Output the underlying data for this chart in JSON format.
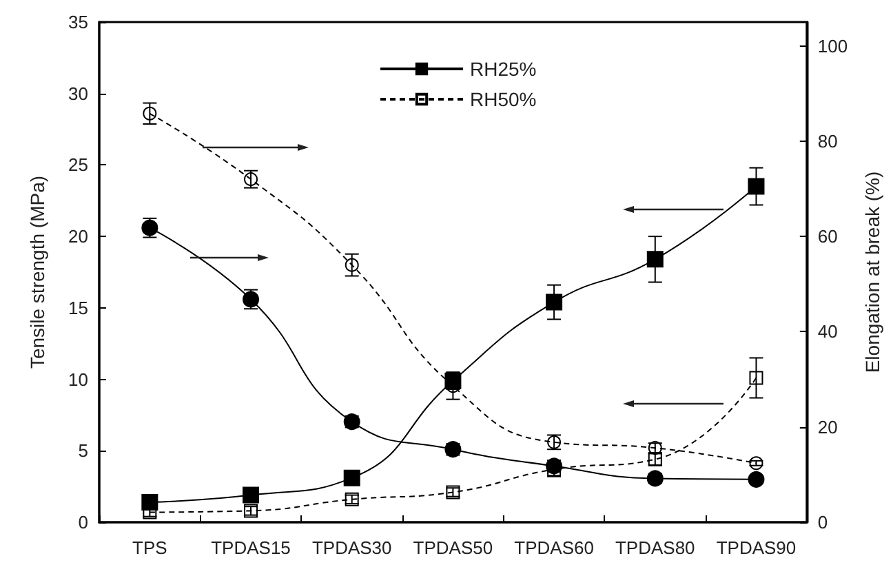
{
  "chart_data": {
    "type": "line",
    "categories": [
      "TPS",
      "TPDAS15",
      "TPDAS30",
      "TPDAS50",
      "TPDAS60",
      "TPDAS80",
      "TPDAS90"
    ],
    "ylabel": "Tensile strength (MPa)",
    "y2label": "Elongation at break (%)",
    "ylim": [
      0,
      35
    ],
    "yticks": [
      0,
      5,
      10,
      15,
      20,
      25,
      30,
      35
    ],
    "y2lim": [
      0,
      105
    ],
    "y2ticks": [
      0,
      20,
      40,
      60,
      80,
      100
    ],
    "grid": false,
    "legend": "top",
    "series": [
      {
        "name": "RH25%",
        "color": "#000000",
        "marker": "square",
        "line_style": "solid",
        "values": [
          1.4,
          1.9,
          3.1,
          9.9,
          15.4,
          18.4,
          23.5
        ],
        "errors": [
          0.3,
          0.4,
          0.3,
          0.6,
          1.2,
          1.6,
          1.3
        ]
      },
      {
        "color": "#000000",
        "marker": "circle",
        "line_style": "solid",
        "axis": "y2",
        "values": [
          61.8,
          46.8,
          21.1,
          15.3,
          11.8,
          9.2,
          9.0
        ],
        "errors": [
          2.0,
          2.0,
          1.2,
          1.2,
          1.2,
          1.0,
          0.8
        ]
      },
      {
        "name": "RH50%",
        "color": "#000000",
        "marker": "square",
        "line_style": "dashed",
        "values": [
          0.7,
          0.8,
          1.6,
          2.1,
          3.7,
          4.4,
          10.1
        ],
        "errors": [
          0.3,
          0.3,
          0.3,
          0.3,
          0.5,
          0.4,
          1.4
        ]
      },
      {
        "color": "#000000",
        "marker": "circle",
        "line_style": "dashed",
        "axis": "y2",
        "values": [
          85.8,
          72.0,
          54.0,
          28.6,
          16.8,
          15.6,
          12.4
        ],
        "errors": [
          2.2,
          1.8,
          2.3,
          2.8,
          1.5,
          1.0,
          0.5
        ]
      }
    ]
  }
}
